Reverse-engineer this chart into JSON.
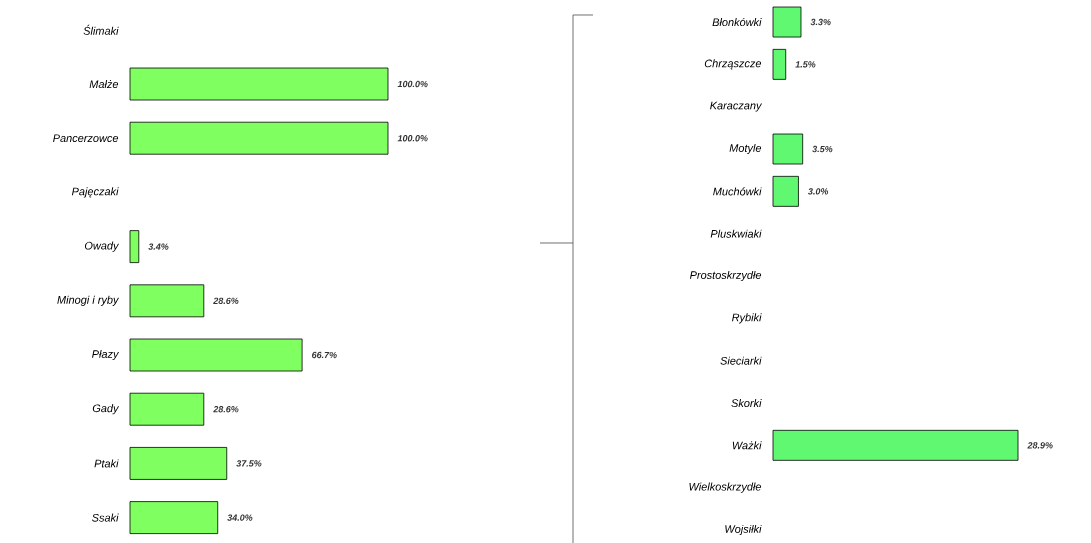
{
  "chart_data": [
    {
      "type": "bar",
      "orientation": "horizontal",
      "color": "#80ff60",
      "categories": [
        "Ślimaki",
        "Małże",
        "Pancerzowce",
        "Pajęczaki",
        "Owady",
        "Minogi i ryby",
        "Płazy",
        "Gady",
        "Ptaki",
        "Ssaki"
      ],
      "values": [
        null,
        100.0,
        100.0,
        null,
        3.4,
        28.6,
        66.7,
        28.6,
        37.5,
        34.0
      ],
      "value_labels": [
        null,
        "100.0%",
        "100.0%",
        null,
        "3.4%",
        "28.6%",
        "66.7%",
        "28.6%",
        "37.5%",
        "34.0%"
      ]
    },
    {
      "type": "bar",
      "orientation": "horizontal",
      "color": "#5ff870",
      "categories": [
        "Błonkówki",
        "Chrząszcze",
        "Karaczany",
        "Motyle",
        "Muchówki",
        "Pluskwiaki",
        "Prostoskrzydłe",
        "Rybiki",
        "Sieciarki",
        "Skorki",
        "Ważki",
        "Wielkoskrzydłe",
        "Wojsiłki"
      ],
      "values": [
        3.3,
        1.5,
        null,
        3.5,
        3.0,
        null,
        null,
        null,
        null,
        null,
        28.9,
        null,
        null
      ],
      "value_labels": [
        "3.3%",
        "1.5%",
        null,
        "3.5%",
        "3.0%",
        null,
        null,
        null,
        null,
        null,
        "28.9%",
        null,
        null
      ]
    }
  ]
}
